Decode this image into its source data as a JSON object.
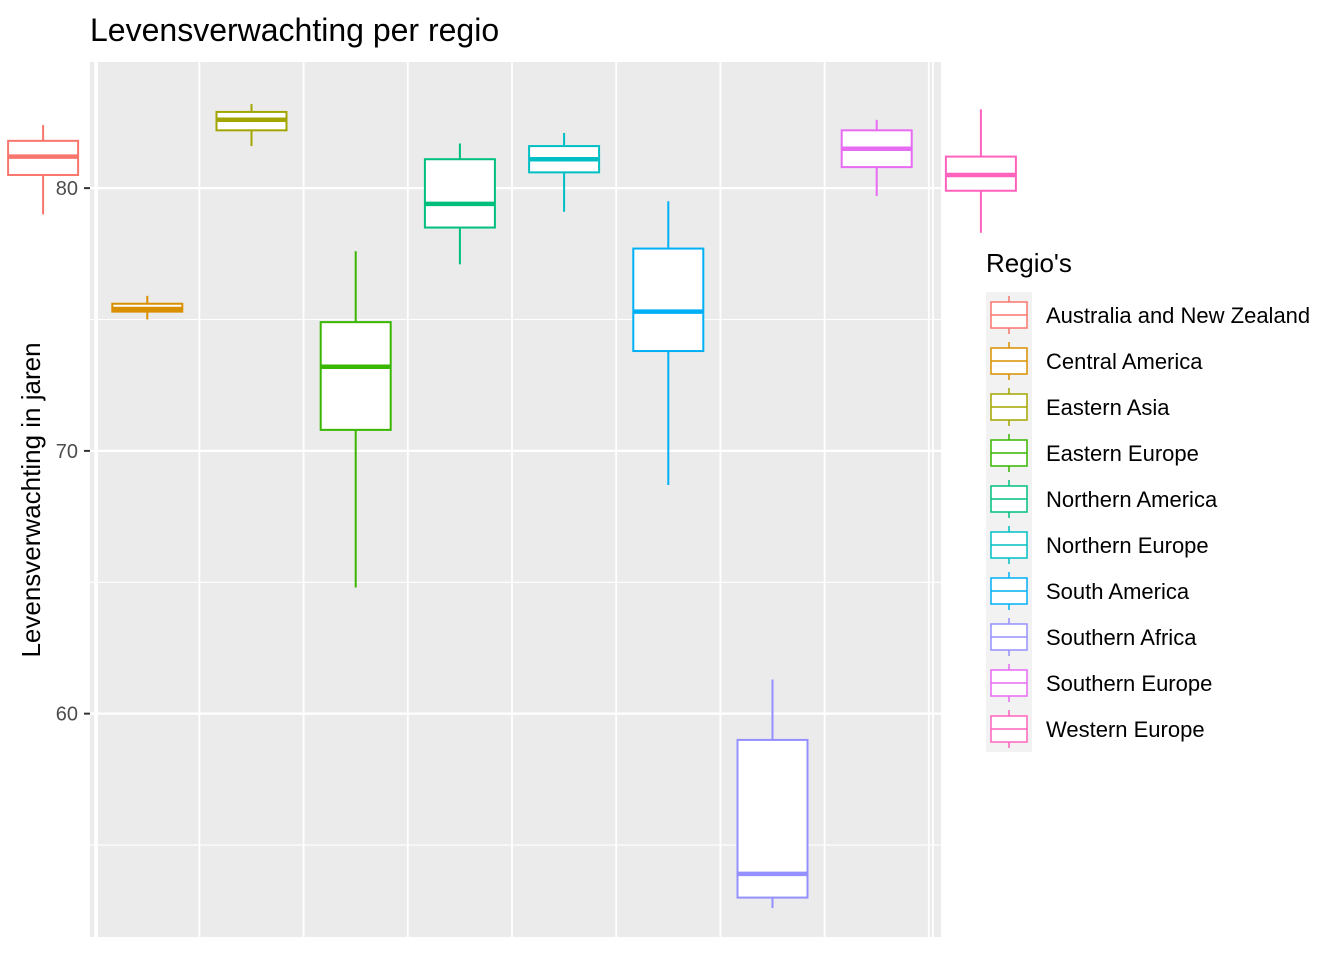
{
  "chart_data": {
    "type": "boxplot",
    "title": "Levensverwachting per regio",
    "xlabel": "",
    "ylabel": "Levensverwachting in jaren",
    "ylim": [
      51.5,
      84.8
    ],
    "yticks": [
      60,
      70,
      80
    ],
    "grid": true,
    "legend": {
      "title": "Regio's",
      "position": "right"
    },
    "series": [
      {
        "name": "Australia and New Zealand",
        "color": "#F8766D",
        "whisker_low": 79.0,
        "q1": 80.5,
        "median": 81.2,
        "q3": 81.8,
        "whisker_high": 82.4
      },
      {
        "name": "Central America",
        "color": "#D89000",
        "whisker_low": 75.0,
        "q1": 75.3,
        "median": 75.4,
        "q3": 75.6,
        "whisker_high": 75.9
      },
      {
        "name": "Eastern Asia",
        "color": "#A3A500",
        "whisker_low": 81.6,
        "q1": 82.2,
        "median": 82.6,
        "q3": 82.9,
        "whisker_high": 83.2
      },
      {
        "name": "Eastern Europe",
        "color": "#39B600",
        "whisker_low": 64.8,
        "q1": 70.8,
        "median": 73.2,
        "q3": 74.9,
        "whisker_high": 77.6
      },
      {
        "name": "Northern America",
        "color": "#00BF7D",
        "whisker_low": 77.1,
        "q1": 78.5,
        "median": 79.4,
        "q3": 81.1,
        "whisker_high": 81.7
      },
      {
        "name": "Northern Europe",
        "color": "#00BFC4",
        "whisker_low": 79.1,
        "q1": 80.6,
        "median": 81.1,
        "q3": 81.6,
        "whisker_high": 82.1
      },
      {
        "name": "South America",
        "color": "#00B0F6",
        "whisker_low": 68.7,
        "q1": 73.8,
        "median": 75.3,
        "q3": 77.7,
        "whisker_high": 79.5
      },
      {
        "name": "Southern Africa",
        "color": "#9590FF",
        "whisker_low": 52.6,
        "q1": 53.0,
        "median": 53.9,
        "q3": 59.0,
        "whisker_high": 61.3
      },
      {
        "name": "Southern Europe",
        "color": "#E76BF3",
        "whisker_low": 79.7,
        "q1": 80.8,
        "median": 81.5,
        "q3": 82.2,
        "whisker_high": 82.6
      },
      {
        "name": "Western Europe",
        "color": "#FF62BC",
        "whisker_low": 78.3,
        "q1": 79.9,
        "median": 80.5,
        "q3": 81.2,
        "whisker_high": 83.0
      }
    ]
  }
}
